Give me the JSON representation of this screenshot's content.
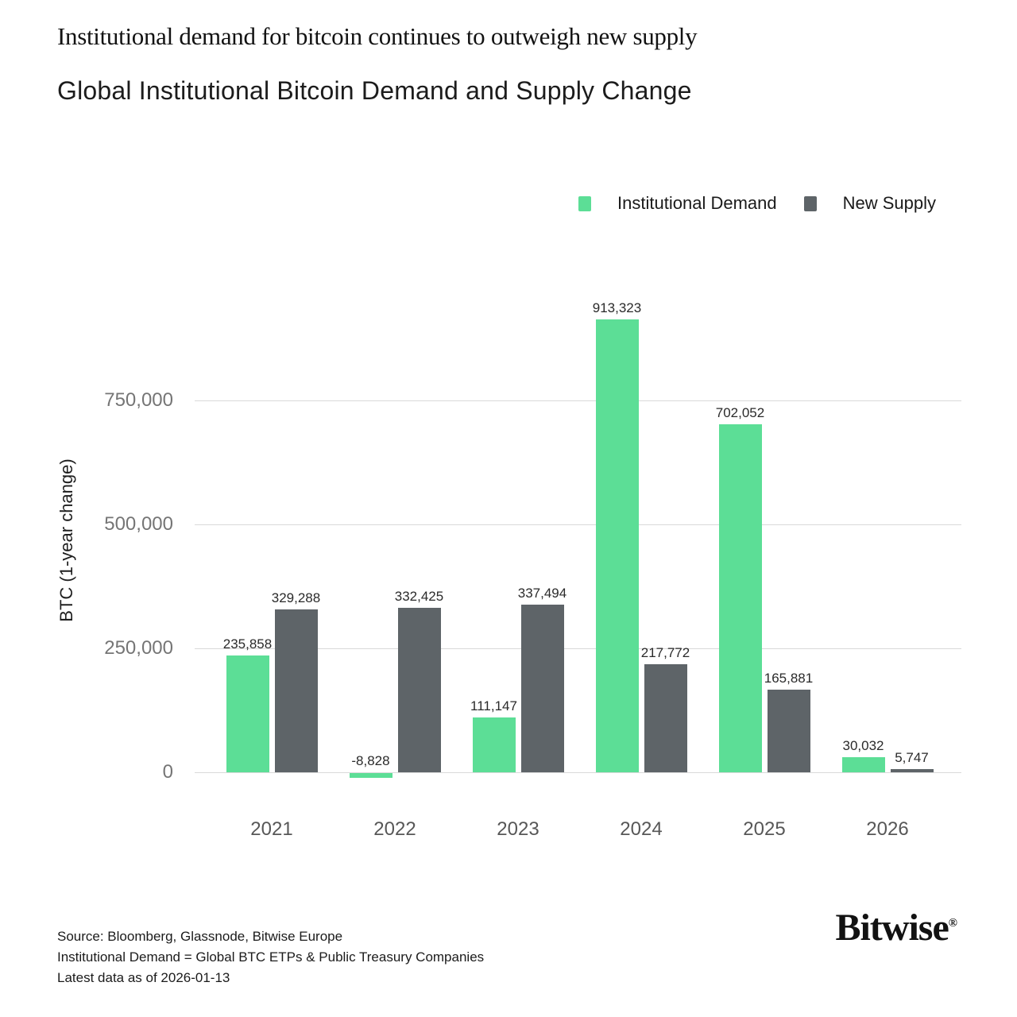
{
  "header": {
    "eyebrow": "Institutional demand for bitcoin continues to outweigh new supply",
    "title": "Global Institutional Bitcoin Demand and Supply Change"
  },
  "chart_data": {
    "type": "bar",
    "title": "Global Institutional Bitcoin Demand and Supply Change",
    "categories": [
      "2021",
      "2022",
      "2023",
      "2024",
      "2025",
      "2026"
    ],
    "series": [
      {
        "name": "Institutional Demand",
        "color": "#5cde96",
        "values": [
          235858,
          -8828,
          111147,
          913323,
          702052,
          30032
        ]
      },
      {
        "name": "New Supply",
        "color": "#5e6468",
        "values": [
          329288,
          332425,
          337494,
          217772,
          165881,
          5747
        ]
      }
    ],
    "ylabel": "BTC (1-year change)",
    "yticks": [
      0,
      250000,
      500000,
      750000
    ],
    "ytick_labels": [
      "0",
      "250,000",
      "500,000",
      "750,000"
    ],
    "ylim": [
      -20000,
      950000
    ],
    "grid": true,
    "grid_color": "#d9d9d9",
    "legend_position": "top-right",
    "bar_value_labels_shown": true
  },
  "footer": {
    "source": "Source: Bloomberg, Glassnode, Bitwise Europe",
    "definition": "Institutional Demand = Global BTC ETPs & Public Treasury Companies",
    "as_of": "Latest data as of 2026-01-13",
    "brand": "Bitwise",
    "brand_mark": "®"
  }
}
